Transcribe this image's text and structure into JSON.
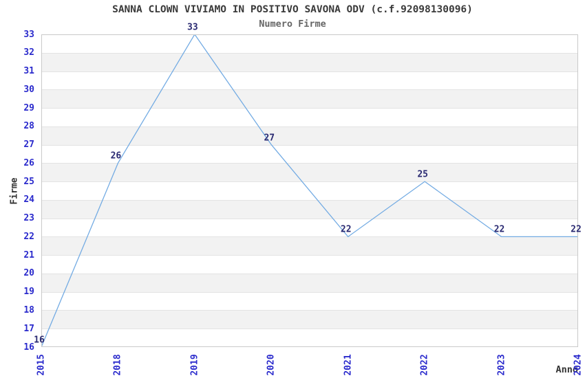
{
  "chart_data": {
    "type": "line",
    "title": "SANNA CLOWN VIVIAMO IN POSITIVO SAVONA ODV (c.f.92098130096)",
    "subtitle": "Numero Firme",
    "xlabel": "Anno",
    "ylabel": "Firme",
    "categories": [
      "2015",
      "2018",
      "2019",
      "2020",
      "2021",
      "2022",
      "2023",
      "2024"
    ],
    "series": [
      {
        "name": "Numero Firme",
        "values": [
          16,
          26,
          33,
          27,
          22,
          25,
          22,
          22
        ]
      }
    ],
    "data_point_labels": [
      "16",
      "26",
      "33",
      "27",
      "22",
      "25",
      "22",
      "22"
    ],
    "ylim": [
      16,
      33
    ],
    "ytick_step": 1,
    "legend": "none",
    "grid": "horizontal alternating bands, gridline at each integer",
    "marker": "none",
    "colors": {
      "line": "#73abe3",
      "tick_label": "#2a2acc",
      "data_label": "#2a2a72",
      "title": "#3a3a3a",
      "subtitle": "#666666",
      "axis_label": "#333333",
      "band_light": "#ffffff",
      "band_dark": "#f2f2f2",
      "gridline": "#e3e3e3",
      "frame": "#c9c9c9",
      "background": "#ffffff"
    }
  }
}
